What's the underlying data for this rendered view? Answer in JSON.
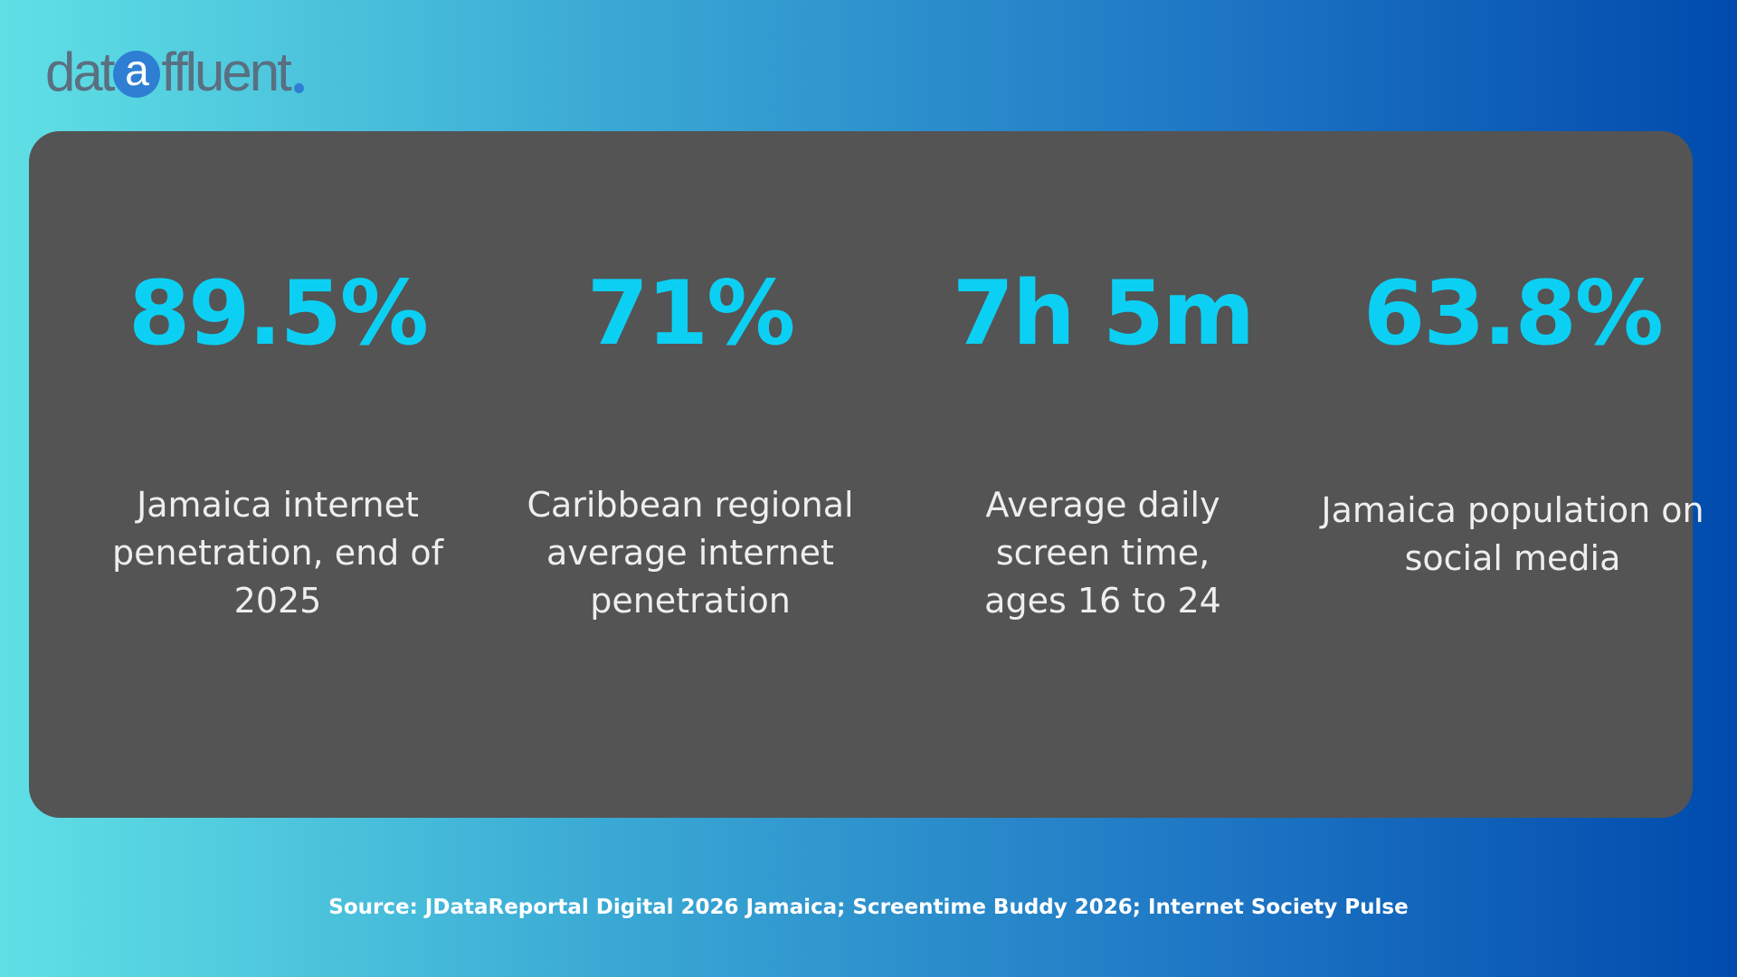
{
  "logo": {
    "prefix": "dat",
    "circle_letter": "a",
    "suffix": "ffluent",
    "text_color": "#5a6f80",
    "accent_color": "#2e7fd3"
  },
  "stats": [
    {
      "value": "89.5%",
      "label": "Jamaica internet penetration, end of 2025"
    },
    {
      "value": "71%",
      "label": "Caribbean regional average internet penetration"
    },
    {
      "value": "7h 5m",
      "label": "Average daily screen time, ages 16 to 24"
    },
    {
      "value": "63.8%",
      "label": "Jamaica population on social media"
    }
  ],
  "source": "Source: JDataReportal Digital 2026 Jamaica; Screentime Buddy 2026; Internet Society Pulse",
  "colors": {
    "value_color": "#0cd0f3",
    "card_background": "#545454",
    "label_color": "#eeeeee"
  }
}
